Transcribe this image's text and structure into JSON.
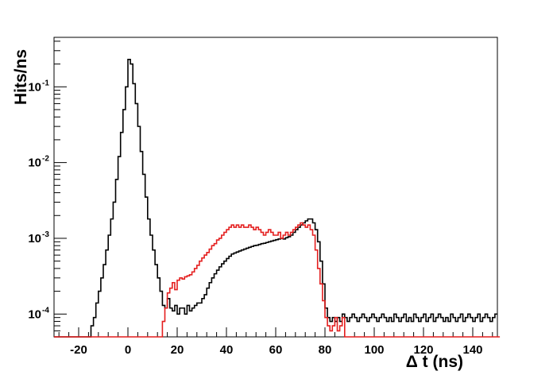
{
  "chart_data": {
    "type": "line",
    "style": "step-histogram",
    "title": "",
    "xlabel": "Δ t (ns)",
    "ylabel": "Hits/ns",
    "xlim": [
      -30,
      150
    ],
    "ylim": [
      5e-05,
      0.45
    ],
    "yscale": "log",
    "grid": false,
    "legend": "none",
    "x_ticks": [
      -20,
      0,
      20,
      40,
      60,
      80,
      100,
      120,
      140
    ],
    "y_ticks": [
      {
        "base": "10",
        "exp": "-4",
        "value": 0.0001
      },
      {
        "base": "10",
        "exp": "-3",
        "value": 0.001
      },
      {
        "base": "10",
        "exp": "-2",
        "value": 0.01
      },
      {
        "base": "10",
        "exp": "-1",
        "value": 0.1
      }
    ],
    "series": [
      {
        "color": "#000000",
        "points": [
          [
            -30,
            5e-05
          ],
          [
            -16,
            5e-05
          ],
          [
            -15,
            7e-05
          ],
          [
            -14,
            9e-05
          ],
          [
            -13,
            0.00014
          ],
          [
            -12,
            0.0002
          ],
          [
            -11,
            0.0003
          ],
          [
            -10,
            0.00045
          ],
          [
            -9,
            0.0007
          ],
          [
            -8,
            0.0011
          ],
          [
            -7,
            0.0018
          ],
          [
            -6,
            0.003
          ],
          [
            -5,
            0.006
          ],
          [
            -4,
            0.012
          ],
          [
            -3,
            0.025
          ],
          [
            -2,
            0.05
          ],
          [
            -1,
            0.1
          ],
          [
            0,
            0.23
          ],
          [
            1,
            0.2
          ],
          [
            2,
            0.11
          ],
          [
            3,
            0.06
          ],
          [
            4,
            0.03
          ],
          [
            5,
            0.014
          ],
          [
            6,
            0.007
          ],
          [
            7,
            0.0035
          ],
          [
            8,
            0.0018
          ],
          [
            9,
            0.0011
          ],
          [
            10,
            0.0007
          ],
          [
            11,
            0.00045
          ],
          [
            12,
            0.0003
          ],
          [
            13,
            0.0002
          ],
          [
            14,
            0.00013
          ],
          [
            15,
            0.00012
          ],
          [
            16,
            0.00016
          ],
          [
            17,
            0.00012
          ],
          [
            18,
            0.00011
          ],
          [
            19,
            0.00013
          ],
          [
            20,
            0.0001
          ],
          [
            21,
            0.00012
          ],
          [
            22,
            0.00012
          ],
          [
            23,
            0.0001
          ],
          [
            24,
            0.00013
          ],
          [
            25,
            0.00011
          ],
          [
            26,
            0.00012
          ],
          [
            27,
            0.00013
          ],
          [
            28,
            0.00014
          ],
          [
            29,
            0.00014
          ],
          [
            30,
            0.00016
          ],
          [
            31,
            0.00018
          ],
          [
            32,
            0.00022
          ],
          [
            33,
            0.00026
          ],
          [
            34,
            0.0003
          ],
          [
            35,
            0.00034
          ],
          [
            36,
            0.00038
          ],
          [
            37,
            0.00042
          ],
          [
            38,
            0.00046
          ],
          [
            39,
            0.0005
          ],
          [
            40,
            0.00054
          ],
          [
            41,
            0.00058
          ],
          [
            42,
            0.00062
          ],
          [
            43,
            0.00064
          ],
          [
            44,
            0.00066
          ],
          [
            45,
            0.00068
          ],
          [
            46,
            0.0007
          ],
          [
            47,
            0.00072
          ],
          [
            48,
            0.00074
          ],
          [
            49,
            0.00076
          ],
          [
            50,
            0.00078
          ],
          [
            51,
            0.0008
          ],
          [
            52,
            0.00081
          ],
          [
            53,
            0.00083
          ],
          [
            54,
            0.00085
          ],
          [
            55,
            0.00086
          ],
          [
            56,
            0.00088
          ],
          [
            57,
            0.0009
          ],
          [
            58,
            0.00092
          ],
          [
            59,
            0.00094
          ],
          [
            60,
            0.00096
          ],
          [
            61,
            0.00098
          ],
          [
            62,
            0.001
          ],
          [
            63,
            0.00098
          ],
          [
            64,
            0.00102
          ],
          [
            65,
            0.00105
          ],
          [
            66,
            0.0011
          ],
          [
            67,
            0.0012
          ],
          [
            68,
            0.0013
          ],
          [
            69,
            0.0014
          ],
          [
            70,
            0.0015
          ],
          [
            71,
            0.0016
          ],
          [
            72,
            0.0017
          ],
          [
            73,
            0.0018
          ],
          [
            74,
            0.0018
          ],
          [
            75,
            0.0016
          ],
          [
            76,
            0.0013
          ],
          [
            77,
            0.0009
          ],
          [
            78,
            0.0005
          ],
          [
            79,
            0.00025
          ],
          [
            80,
            0.00012
          ],
          [
            81,
            9e-05
          ],
          [
            82,
            8e-05
          ],
          [
            83,
            9e-05
          ],
          [
            84,
            8e-05
          ],
          [
            85,
            9e-05
          ],
          [
            86,
            8e-05
          ],
          [
            87,
            0.0001
          ],
          [
            88,
            9e-05
          ],
          [
            89,
            8e-05
          ],
          [
            90,
            9e-05
          ],
          [
            91,
            0.0001
          ],
          [
            92,
            9e-05
          ],
          [
            93,
            8e-05
          ],
          [
            94,
            9e-05
          ],
          [
            95,
            0.0001
          ],
          [
            96,
            9e-05
          ],
          [
            97,
            8e-05
          ],
          [
            98,
            9e-05
          ],
          [
            99,
            0.0001
          ],
          [
            100,
            9e-05
          ],
          [
            101,
            8e-05
          ],
          [
            102,
            9e-05
          ],
          [
            103,
            0.0001
          ],
          [
            104,
            9e-05
          ],
          [
            105,
            8e-05
          ],
          [
            106,
            9e-05
          ],
          [
            107,
            8e-05
          ],
          [
            108,
            0.0001
          ],
          [
            109,
            9e-05
          ],
          [
            110,
            8e-05
          ],
          [
            111,
            9e-05
          ],
          [
            112,
            0.0001
          ],
          [
            113,
            8e-05
          ],
          [
            114,
            9e-05
          ],
          [
            115,
            8e-05
          ],
          [
            116,
            0.0001
          ],
          [
            117,
            9e-05
          ],
          [
            118,
            8e-05
          ],
          [
            119,
            9e-05
          ],
          [
            120,
            0.0001
          ],
          [
            121,
            8e-05
          ],
          [
            122,
            9e-05
          ],
          [
            123,
            0.0001
          ],
          [
            124,
            8e-05
          ],
          [
            125,
            9e-05
          ],
          [
            126,
            0.0001
          ],
          [
            127,
            9e-05
          ],
          [
            128,
            8e-05
          ],
          [
            129,
            9e-05
          ],
          [
            130,
            8e-05
          ],
          [
            131,
            0.0001
          ],
          [
            132,
            9e-05
          ],
          [
            133,
            8e-05
          ],
          [
            134,
            9e-05
          ],
          [
            135,
            0.0001
          ],
          [
            136,
            8e-05
          ],
          [
            137,
            9e-05
          ],
          [
            138,
            0.0001
          ],
          [
            139,
            9e-05
          ],
          [
            140,
            8e-05
          ],
          [
            141,
            9e-05
          ],
          [
            142,
            0.0001
          ],
          [
            143,
            8e-05
          ],
          [
            144,
            9e-05
          ],
          [
            145,
            0.0001
          ],
          [
            146,
            9e-05
          ],
          [
            147,
            8e-05
          ],
          [
            148,
            9e-05
          ],
          [
            149,
            0.0001
          ]
        ]
      },
      {
        "color": "#e41e1e",
        "points": [
          [
            -30,
            5e-05
          ],
          [
            13,
            5e-05
          ],
          [
            14,
            8e-05
          ],
          [
            15,
            0.00012
          ],
          [
            16,
            0.00019
          ],
          [
            17,
            0.00022
          ],
          [
            18,
            0.00026
          ],
          [
            19,
            0.00021
          ],
          [
            20,
            0.00028
          ],
          [
            21,
            0.0003
          ],
          [
            22,
            0.00029
          ],
          [
            23,
            0.00031
          ],
          [
            24,
            0.00032
          ],
          [
            25,
            0.00033
          ],
          [
            26,
            0.00036
          ],
          [
            27,
            0.0004
          ],
          [
            28,
            0.00044
          ],
          [
            29,
            0.0005
          ],
          [
            30,
            0.00055
          ],
          [
            31,
            0.0006
          ],
          [
            32,
            0.00065
          ],
          [
            33,
            0.00072
          ],
          [
            34,
            0.0008
          ],
          [
            35,
            0.00085
          ],
          [
            36,
            0.00095
          ],
          [
            37,
            0.001
          ],
          [
            38,
            0.0011
          ],
          [
            39,
            0.0012
          ],
          [
            40,
            0.0013
          ],
          [
            41,
            0.0014
          ],
          [
            42,
            0.0015
          ],
          [
            43,
            0.0014
          ],
          [
            44,
            0.0015
          ],
          [
            45,
            0.0014
          ],
          [
            46,
            0.0015
          ],
          [
            47,
            0.0014
          ],
          [
            48,
            0.0014
          ],
          [
            49,
            0.0015
          ],
          [
            50,
            0.0014
          ],
          [
            51,
            0.0013
          ],
          [
            52,
            0.0014
          ],
          [
            53,
            0.0013
          ],
          [
            54,
            0.0012
          ],
          [
            55,
            0.0011
          ],
          [
            56,
            0.0012
          ],
          [
            57,
            0.0013
          ],
          [
            58,
            0.0012
          ],
          [
            59,
            0.0011
          ],
          [
            60,
            0.0011
          ],
          [
            61,
            0.0012
          ],
          [
            62,
            0.001
          ],
          [
            63,
            0.0011
          ],
          [
            64,
            0.0012
          ],
          [
            65,
            0.0011
          ],
          [
            66,
            0.0012
          ],
          [
            67,
            0.0013
          ],
          [
            68,
            0.0014
          ],
          [
            69,
            0.0015
          ],
          [
            70,
            0.0016
          ],
          [
            71,
            0.0015
          ],
          [
            72,
            0.0014
          ],
          [
            73,
            0.0015
          ],
          [
            74,
            0.0013
          ],
          [
            75,
            0.0011
          ],
          [
            76,
            0.0007
          ],
          [
            77,
            0.0004
          ],
          [
            78,
            0.00025
          ],
          [
            79,
            0.00015
          ],
          [
            80,
            9e-05
          ],
          [
            81,
            7e-05
          ],
          [
            82,
            6e-05
          ],
          [
            83,
            7e-05
          ],
          [
            84,
            9e-05
          ],
          [
            85,
            6e-05
          ],
          [
            86,
            7e-05
          ],
          [
            87,
            9e-05
          ],
          [
            88,
            5e-05
          ],
          [
            150,
            5e-05
          ]
        ]
      }
    ]
  }
}
